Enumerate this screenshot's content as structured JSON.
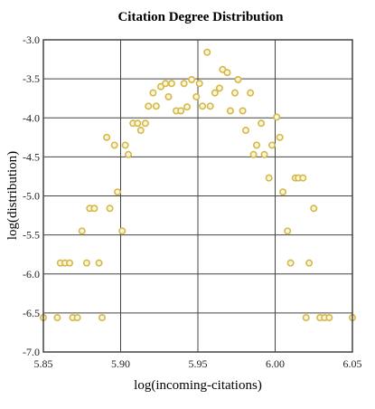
{
  "chart_data": {
    "type": "scatter",
    "title": "Citation Degree Distribution",
    "xlabel": "log(incoming-citations)",
    "ylabel": "log(distribution)",
    "xlim": [
      5.85,
      6.05
    ],
    "ylim": [
      -7.0,
      -3.0
    ],
    "xticks": [
      "5.85",
      "5.90",
      "5.95",
      "6.00",
      "6.05"
    ],
    "yticks": [
      "-3.0",
      "-3.5",
      "-4.0",
      "-4.5",
      "-5.0",
      "-5.5",
      "-6.0",
      "-6.5",
      "-7.0"
    ],
    "grid": true,
    "marker_color": "#d4b84a",
    "marker_fill": "#fbf6d8",
    "points": [
      [
        5.85,
        -6.56
      ],
      [
        5.859,
        -6.56
      ],
      [
        5.861,
        -5.86
      ],
      [
        5.864,
        -5.86
      ],
      [
        5.867,
        -5.86
      ],
      [
        5.869,
        -6.56
      ],
      [
        5.872,
        -6.56
      ],
      [
        5.875,
        -5.45
      ],
      [
        5.878,
        -5.86
      ],
      [
        5.88,
        -5.16
      ],
      [
        5.883,
        -5.16
      ],
      [
        5.886,
        -5.86
      ],
      [
        5.888,
        -6.56
      ],
      [
        5.891,
        -4.25
      ],
      [
        5.893,
        -5.16
      ],
      [
        5.896,
        -4.35
      ],
      [
        5.898,
        -4.95
      ],
      [
        5.901,
        -5.45
      ],
      [
        5.903,
        -4.35
      ],
      [
        5.905,
        -4.47
      ],
      [
        5.908,
        -4.07
      ],
      [
        5.911,
        -4.07
      ],
      [
        5.913,
        -4.16
      ],
      [
        5.916,
        -4.07
      ],
      [
        5.918,
        -3.85
      ],
      [
        5.921,
        -3.68
      ],
      [
        5.923,
        -3.85
      ],
      [
        5.926,
        -3.6
      ],
      [
        5.929,
        -3.56
      ],
      [
        5.931,
        -3.73
      ],
      [
        5.933,
        -3.56
      ],
      [
        5.936,
        -3.91
      ],
      [
        5.939,
        -3.91
      ],
      [
        5.941,
        -3.56
      ],
      [
        5.943,
        -3.86
      ],
      [
        5.946,
        -3.51
      ],
      [
        5.949,
        -3.73
      ],
      [
        5.951,
        -3.56
      ],
      [
        5.953,
        -3.85
      ],
      [
        5.956,
        -3.16
      ],
      [
        5.958,
        -3.85
      ],
      [
        5.961,
        -3.68
      ],
      [
        5.964,
        -3.62
      ],
      [
        5.966,
        -3.38
      ],
      [
        5.969,
        -3.42
      ],
      [
        5.971,
        -3.91
      ],
      [
        5.974,
        -3.68
      ],
      [
        5.976,
        -3.51
      ],
      [
        5.979,
        -3.91
      ],
      [
        5.981,
        -4.16
      ],
      [
        5.984,
        -3.68
      ],
      [
        5.986,
        -4.47
      ],
      [
        5.988,
        -4.35
      ],
      [
        5.991,
        -4.07
      ],
      [
        5.993,
        -4.47
      ],
      [
        5.996,
        -4.77
      ],
      [
        5.998,
        -4.35
      ],
      [
        6.001,
        -3.99
      ],
      [
        6.003,
        -4.25
      ],
      [
        6.005,
        -4.95
      ],
      [
        6.008,
        -5.45
      ],
      [
        6.01,
        -5.86
      ],
      [
        6.013,
        -4.77
      ],
      [
        6.015,
        -4.77
      ],
      [
        6.018,
        -4.77
      ],
      [
        6.02,
        -6.56
      ],
      [
        6.022,
        -5.86
      ],
      [
        6.025,
        -5.16
      ],
      [
        6.029,
        -6.56
      ],
      [
        6.032,
        -6.56
      ],
      [
        6.035,
        -6.56
      ],
      [
        6.05,
        -6.56
      ]
    ]
  }
}
